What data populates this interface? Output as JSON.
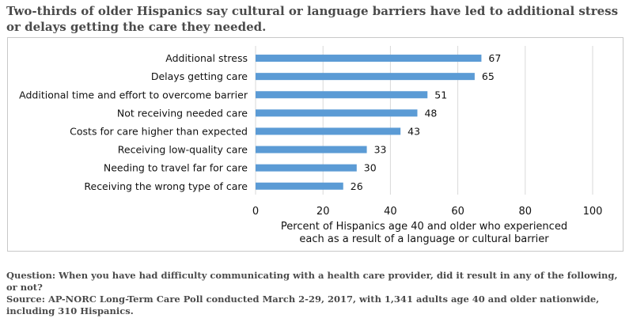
{
  "title": "Two-thirds of older Hispanics say cultural or language barriers have led to additional stress or delays getting the care they needed.",
  "chart_data": {
    "type": "bar",
    "orientation": "horizontal",
    "categories": [
      "Additional stress",
      "Delays getting care",
      "Additional time and effort to overcome barrier",
      "Not receiving needed care",
      "Costs for care higher than expected",
      "Receiving low-quality care",
      "Needing to travel far for care",
      "Receiving the wrong type of care"
    ],
    "values": [
      67,
      65,
      51,
      48,
      43,
      33,
      30,
      26
    ],
    "xlim": [
      0,
      100
    ],
    "xticks": [
      0,
      20,
      40,
      60,
      80,
      100
    ],
    "xlabel_line1": "Percent of Hispanics age 40 and older who experienced",
    "xlabel_line2": "each as a result of a language or cultural barrier",
    "bar_color": "#5b9bd5",
    "grid": "vertical gridlines",
    "data_labels": true
  },
  "footnotes": {
    "question": "Question: When you have had difficulty communicating with a health care provider, did it result in any of the following, or not?",
    "source": "Source: AP-NORC Long-Term Care Poll conducted March 2-29, 2017, with 1,341 adults age 40 and older nationwide, including 310 Hispanics."
  }
}
